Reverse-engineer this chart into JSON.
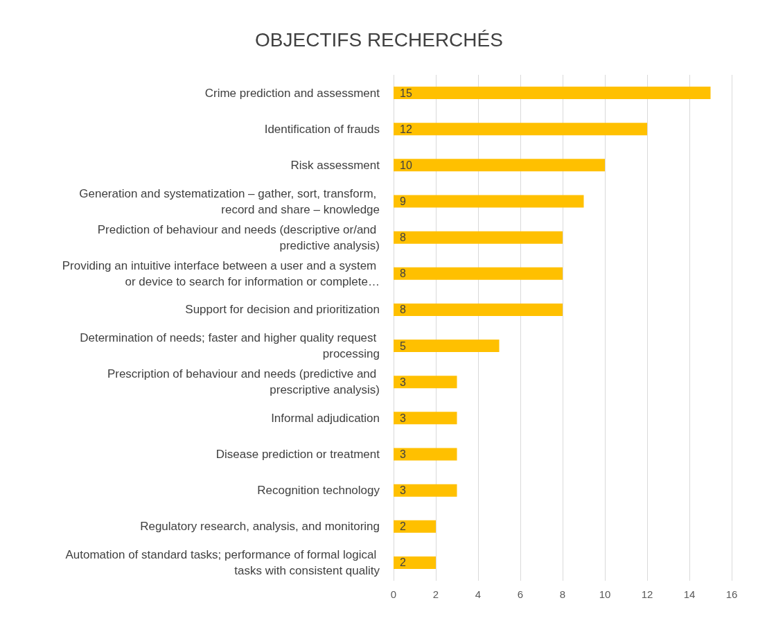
{
  "chart_data": {
    "type": "bar",
    "orientation": "horizontal",
    "title": "OBJECTIFS RECHERCHÉS",
    "categories": [
      "Crime prediction and assessment",
      "Identification of frauds",
      "Risk assessment",
      "Generation and systematization – gather, sort, transform, record and share – knowledge",
      "Prediction of behaviour and needs (descriptive or/and predictive analysis)",
      "Providing an intuitive interface between a user and a system or device to search for information or complete…",
      "Support for decision and prioritization",
      "Determination of needs; faster and higher quality request processing",
      "Prescription of behaviour and needs (predictive and prescriptive analysis)",
      "Informal adjudication",
      "Disease prediction or treatment",
      "Recognition technology",
      "Regulatory research, analysis, and monitoring",
      "Automation of standard tasks; performance of formal logical tasks with consistent quality"
    ],
    "values": [
      15,
      12,
      10,
      9,
      8,
      8,
      8,
      5,
      3,
      3,
      3,
      3,
      2,
      2
    ],
    "color": "#ffc000",
    "data_labels": true,
    "xlim": [
      0,
      16
    ],
    "xticks": [
      0,
      2,
      4,
      6,
      8,
      10,
      12,
      14,
      16
    ],
    "grid": "x"
  }
}
